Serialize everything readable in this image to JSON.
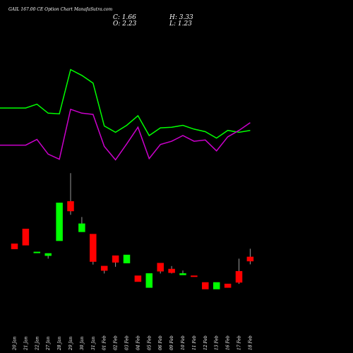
{
  "header": {
    "title": "GAIL 167.00 CE Option Chart ManafaSutra.com",
    "close_text": "C: 1.66",
    "open_text": "O: 2.23",
    "high_text": "H: 3.33",
    "low_text": "L: 1.23"
  },
  "colors": {
    "background": "#000000",
    "up": "#00ff00",
    "down": "#ff0000",
    "line_green": "#00ff00",
    "line_magenta": "#cc00cc",
    "wick": "#999999"
  },
  "chart_data": {
    "type": "candlestick",
    "categories": [
      "20 Jan",
      "21 Jan",
      "22 Jan",
      "27 Jan",
      "28 Jan",
      "29 Jan",
      "30 Jan",
      "31 Jan",
      "01 Feb",
      "02 Feb",
      "03 Feb",
      "04 Feb",
      "05 Feb",
      "06 Feb",
      "09 Feb",
      "10 Feb",
      "11 Feb",
      "12 Feb",
      "13 Feb",
      "16 Feb",
      "17 Feb",
      "18 Feb"
    ],
    "candles": [
      {
        "o": 4.0,
        "h": 4.0,
        "l": 3.3,
        "c": 3.3
      },
      {
        "o": 6.0,
        "h": 6.0,
        "l": 3.8,
        "c": 3.8
      },
      {
        "o": 2.9,
        "h": 2.9,
        "l": 2.9,
        "c": 2.9
      },
      {
        "o": 2.4,
        "h": 2.7,
        "l": 2.0,
        "c": 2.7
      },
      {
        "o": 4.4,
        "h": 9.5,
        "l": 4.4,
        "c": 9.5
      },
      {
        "o": 9.7,
        "h": 13.5,
        "l": 7.9,
        "c": 8.4
      },
      {
        "o": 5.6,
        "h": 7.6,
        "l": 5.6,
        "c": 6.7
      },
      {
        "o": 5.3,
        "h": 5.3,
        "l": 1.2,
        "c": 1.6
      },
      {
        "o": 1.0,
        "h": 1.0,
        "l": 0.0,
        "c": 0.4
      },
      {
        "o": 2.4,
        "h": 2.4,
        "l": 0.9,
        "c": 1.5
      },
      {
        "o": 1.4,
        "h": 2.5,
        "l": 1.4,
        "c": 2.5
      },
      {
        "o": -0.3,
        "h": -0.3,
        "l": -1.1,
        "c": -1.1
      },
      {
        "o": -1.9,
        "h": 0.0,
        "l": -1.9,
        "c": 0.0
      },
      {
        "o": 1.4,
        "h": 1.4,
        "l": 0.0,
        "c": 0.3
      },
      {
        "o": 0.6,
        "h": 1.0,
        "l": 0.0,
        "c": 0.1
      },
      {
        "o": -0.2,
        "h": 0.4,
        "l": -0.2,
        "c": 0.0
      },
      {
        "o": -0.3,
        "h": -0.3,
        "l": -0.4,
        "c": -0.4
      },
      {
        "o": -1.2,
        "h": -1.2,
        "l": -2.1,
        "c": -2.1
      },
      {
        "o": -2.1,
        "h": -1.2,
        "l": -2.1,
        "c": -1.2
      },
      {
        "o": -1.4,
        "h": -1.4,
        "l": -1.9,
        "c": -1.9
      },
      {
        "o": 0.3,
        "h": 2.0,
        "l": -1.4,
        "c": -1.2
      },
      {
        "o": 2.23,
        "h": 3.33,
        "l": 1.23,
        "c": 1.66
      }
    ],
    "series": [
      {
        "values": [
          14.6,
          14.6,
          15.2,
          13.8,
          13.7,
          20.6,
          19.7,
          18.5,
          11.8,
          10.8,
          11.9,
          13.4,
          10.3,
          11.5,
          11.6,
          11.9,
          11.3,
          10.9,
          9.9,
          11.1,
          10.8,
          11.1
        ]
      },
      {
        "values": 0
      }
    ],
    "line_series": [
      {
        "color_key": "line_green",
        "values": [
          14.6,
          14.6,
          15.2,
          13.8,
          13.7,
          20.6,
          19.7,
          18.5,
          11.8,
          10.8,
          11.9,
          13.4,
          10.3,
          11.5,
          11.6,
          11.9,
          11.3,
          10.9,
          9.9,
          11.1,
          10.8,
          11.1
        ]
      },
      {
        "color_key": "line_magenta",
        "values": [
          8.8,
          8.8,
          9.7,
          7.4,
          6.6,
          14.4,
          13.8,
          13.6,
          8.6,
          6.5,
          9.0,
          11.6,
          6.7,
          8.9,
          9.4,
          10.3,
          9.4,
          9.6,
          7.9,
          10.1,
          11.1,
          12.3
        ]
      }
    ],
    "ylim": [
      -5,
      23
    ],
    "grid": false,
    "legend": "none"
  }
}
